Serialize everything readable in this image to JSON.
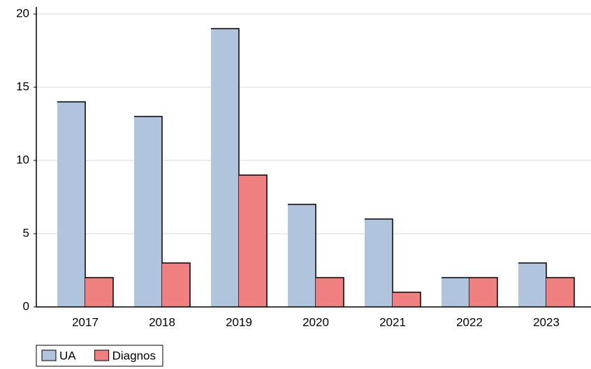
{
  "chart_data": {
    "type": "bar",
    "categories": [
      "2017",
      "2018",
      "2019",
      "2020",
      "2021",
      "2022",
      "2023"
    ],
    "series": [
      {
        "name": "UA",
        "color": "#b0c4de",
        "values": [
          14,
          13,
          19,
          7,
          6,
          2,
          3
        ]
      },
      {
        "name": "Diagnos",
        "color": "#f08080",
        "values": [
          2,
          3,
          9,
          2,
          1,
          2,
          2
        ]
      }
    ],
    "ylim": [
      0,
      20
    ],
    "yticks": [
      0,
      5,
      10,
      15,
      20
    ],
    "grid": true,
    "legend": "bottom-left"
  }
}
